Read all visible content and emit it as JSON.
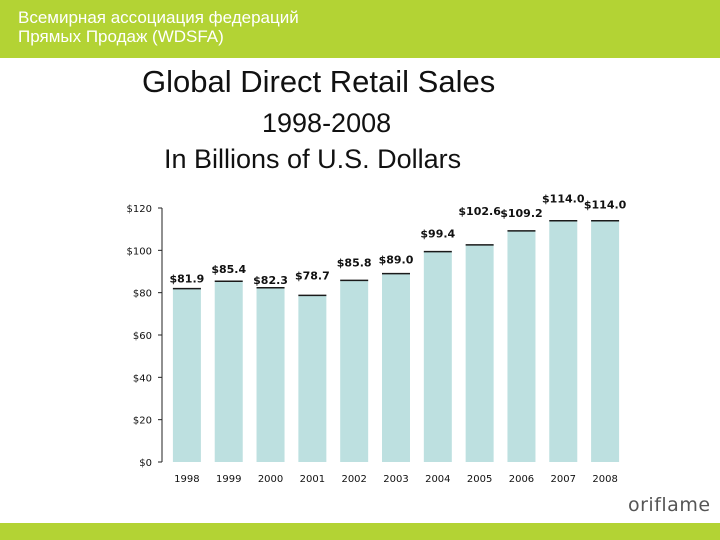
{
  "header": {
    "line1": "Всемирная ассоциация федераций",
    "line2": "Прямых Продаж (WDSFA)",
    "bg_color": "#b3d334"
  },
  "titles": {
    "line1": "Global Direct Retail Sales",
    "line2": "1998-2008",
    "line3": "In Billions of U.S. Dollars"
  },
  "chart_data": {
    "type": "bar",
    "categories": [
      "1998",
      "1999",
      "2000",
      "2001",
      "2002",
      "2003",
      "2004",
      "2005",
      "2006",
      "2007",
      "2008"
    ],
    "values": [
      81.9,
      85.4,
      82.3,
      78.7,
      85.8,
      89.0,
      99.4,
      102.6,
      109.2,
      114.0,
      114.0
    ],
    "data_labels": [
      "$81.9",
      "$85.4",
      "$82.3",
      "$78.7",
      "$85.8",
      "$89.0",
      "$99.4",
      "$102.6",
      "$109.2",
      "$114.0",
      "$114.0"
    ],
    "yticks": [
      0,
      20,
      40,
      60,
      80,
      100,
      120
    ],
    "ytick_labels": [
      "$0",
      "$20",
      "$40",
      "$60",
      "$80",
      "$100",
      "$120"
    ],
    "ylim": [
      0,
      120
    ],
    "grid": false,
    "bar_color": "#bde0e0",
    "bar_top_color": "#1a1a1a"
  },
  "footer": {
    "logo_text": "oriflame",
    "line_color": "#b3d334"
  }
}
